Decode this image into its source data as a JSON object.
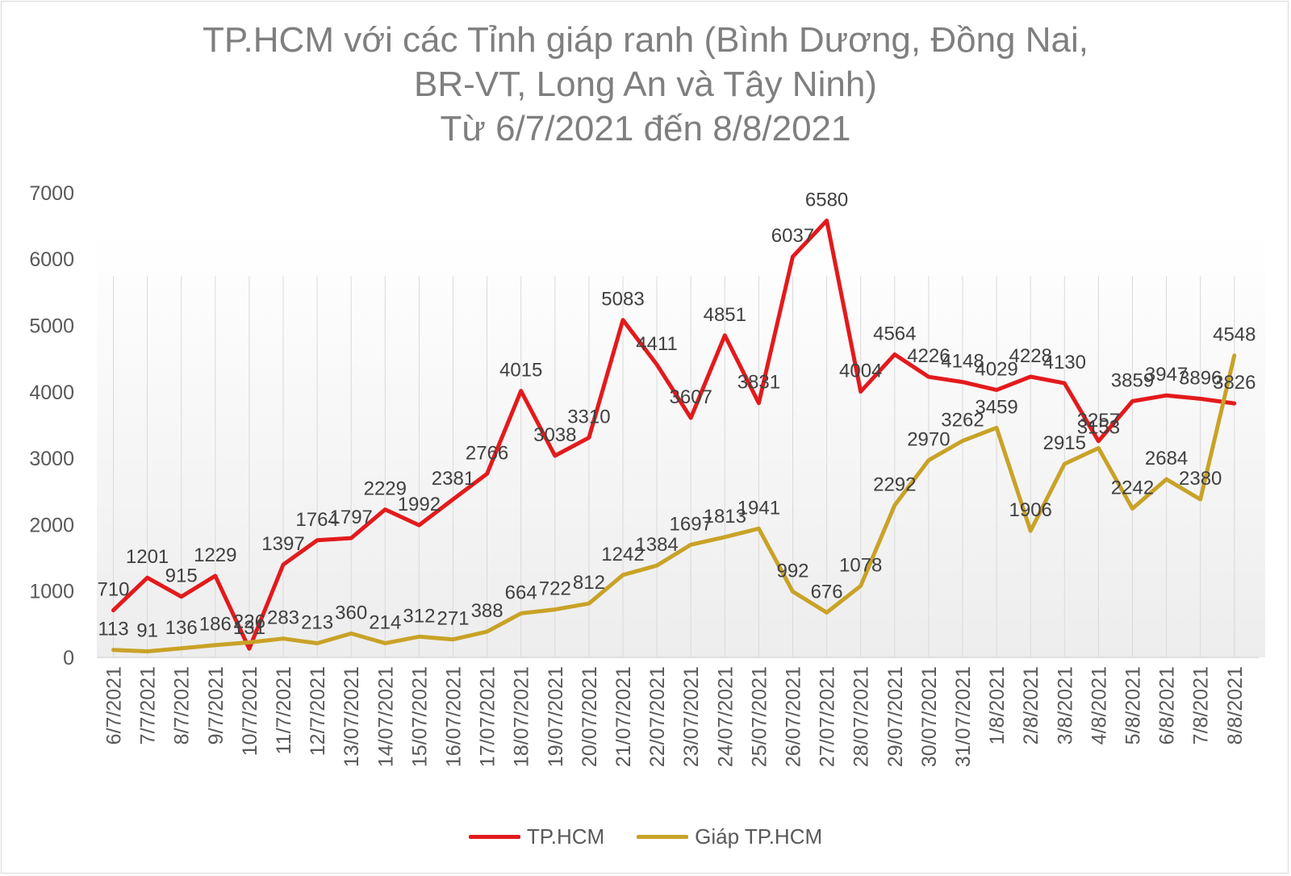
{
  "chart_data": {
    "type": "line",
    "title_lines": [
      "TP.HCM với các Tỉnh giáp ranh (Bình Dương, Đồng Nai,",
      "BR-VT, Long An và Tây Ninh)",
      "Từ 6/7/2021 đến 8/8/2021"
    ],
    "categories": [
      "6/7/2021",
      "7/7/2021",
      "8/7/2021",
      "9/7/2021",
      "10/7/2021",
      "11/7/2021",
      "12/7/2021",
      "13/07/2021",
      "14/07/2021",
      "15/07/2021",
      "16/07/2021",
      "17/07/2021",
      "18/07/2021",
      "19/07/2021",
      "20/07/2021",
      "21/07/2021",
      "22/07/2021",
      "23/07/2021",
      "24/07/2021",
      "25/07/2021",
      "26/07/2021",
      "27/07/2021",
      "28/07/2021",
      "29/07/2021",
      "30/07/2021",
      "31/07/2021",
      "1/8/2021",
      "2/8/2021",
      "3/8/2021",
      "4/8/2021",
      "5/8/2021",
      "6/8/2021",
      "7/8/2021",
      "8/8/2021"
    ],
    "series": [
      {
        "name": "TP.HCM",
        "color": "#e31a1c",
        "values": [
          710,
          1201,
          915,
          1229,
          131,
          1397,
          1764,
          1797,
          2229,
          1992,
          2381,
          2766,
          4015,
          3038,
          3310,
          5083,
          4411,
          3607,
          4851,
          3831,
          6037,
          6580,
          4004,
          4564,
          4226,
          4148,
          4029,
          4228,
          4130,
          3257,
          3859,
          3947,
          3896,
          3826
        ]
      },
      {
        "name": "Giáp TP.HCM",
        "color": "#c9a227",
        "values": [
          113,
          91,
          136,
          186,
          226,
          283,
          213,
          360,
          214,
          312,
          271,
          388,
          664,
          722,
          812,
          1242,
          1384,
          1697,
          1813,
          1941,
          992,
          676,
          1078,
          2292,
          2970,
          3262,
          3459,
          1906,
          2915,
          3153,
          2242,
          2684,
          2380,
          4548
        ]
      }
    ],
    "yticks": [
      0,
      1000,
      2000,
      3000,
      4000,
      5000,
      6000,
      7000
    ],
    "ylim": [
      0,
      7000
    ],
    "grid": "vertical",
    "legend_position": "bottom"
  }
}
